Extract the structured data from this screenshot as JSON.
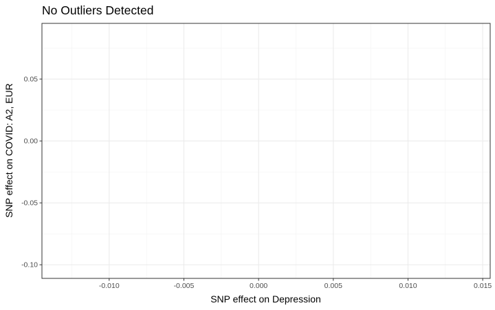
{
  "chart_data": {
    "type": "scatter",
    "title": "No Outliers Detected",
    "xlabel": "SNP effect on Depression",
    "ylabel": "SNP effect on COVID: A2, EUR",
    "xlim": [
      -0.0145,
      0.0155
    ],
    "ylim": [
      -0.111,
      0.095
    ],
    "x_ticks": [
      -0.01,
      -0.005,
      0.0,
      0.005,
      0.01,
      0.015
    ],
    "x_tick_labels": [
      "-0.010",
      "-0.005",
      "0.000",
      "0.005",
      "0.010",
      "0.015"
    ],
    "y_ticks": [
      0.05,
      0.0,
      -0.05,
      -0.1
    ],
    "y_tick_labels": [
      "0.05",
      "0.00",
      "-0.05",
      "-0.10"
    ],
    "grid": true,
    "points": []
  }
}
